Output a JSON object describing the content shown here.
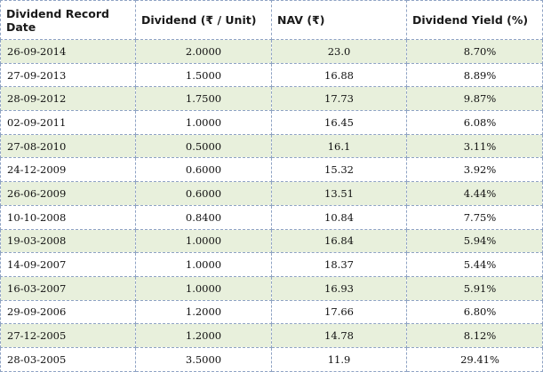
{
  "table": {
    "headers": [
      "Dividend Record Date",
      "Dividend (₹ / Unit)",
      "NAV (₹)",
      "Dividend Yield (%)"
    ],
    "rows": [
      {
        "date": "26-09-2014",
        "dividend": "2.0000",
        "nav": "23.0",
        "yield": "8.70%",
        "shaded": true
      },
      {
        "date": "27-09-2013",
        "dividend": "1.5000",
        "nav": "16.88",
        "yield": "8.89%",
        "shaded": false
      },
      {
        "date": "28-09-2012",
        "dividend": "1.7500",
        "nav": "17.73",
        "yield": "9.87%",
        "shaded": true
      },
      {
        "date": "02-09-2011",
        "dividend": "1.0000",
        "nav": "16.45",
        "yield": "6.08%",
        "shaded": false
      },
      {
        "date": "27-08-2010",
        "dividend": "0.5000",
        "nav": "16.1",
        "yield": "3.11%",
        "shaded": true
      },
      {
        "date": "24-12-2009",
        "dividend": "0.6000",
        "nav": "15.32",
        "yield": "3.92%",
        "shaded": false
      },
      {
        "date": "26-06-2009",
        "dividend": "0.6000",
        "nav": "13.51",
        "yield": "4.44%",
        "shaded": true
      },
      {
        "date": "10-10-2008",
        "dividend": "0.8400",
        "nav": "10.84",
        "yield": "7.75%",
        "shaded": false
      },
      {
        "date": "19-03-2008",
        "dividend": "1.0000",
        "nav": "16.84",
        "yield": "5.94%",
        "shaded": true
      },
      {
        "date": "14-09-2007",
        "dividend": "1.0000",
        "nav": "18.37",
        "yield": "5.44%",
        "shaded": false
      },
      {
        "date": "16-03-2007",
        "dividend": "1.0000",
        "nav": "16.93",
        "yield": "5.91%",
        "shaded": true
      },
      {
        "date": "29-09-2006",
        "dividend": "1.2000",
        "nav": "17.66",
        "yield": "6.80%",
        "shaded": false
      },
      {
        "date": "27-12-2005",
        "dividend": "1.2000",
        "nav": "14.78",
        "yield": "8.12%",
        "shaded": true
      },
      {
        "date": "28-03-2005",
        "dividend": "3.5000",
        "nav": "11.9",
        "yield": "29.41%",
        "shaded": false
      }
    ]
  },
  "colors": {
    "row_shade": "#e8f0dc",
    "border": "#8fa3c4"
  }
}
